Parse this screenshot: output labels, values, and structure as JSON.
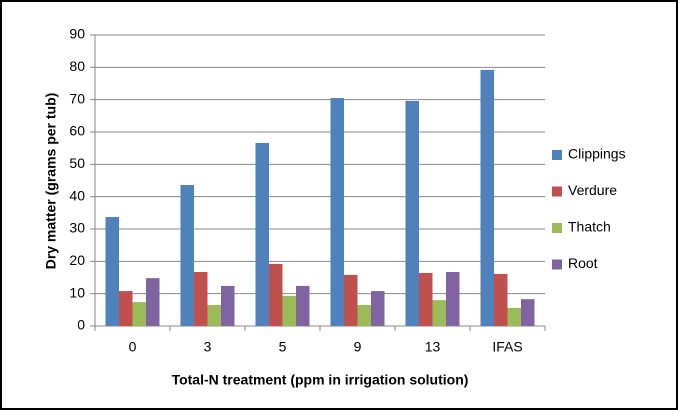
{
  "chart_data": {
    "type": "bar",
    "x_label": "Total-N treatment (ppm in irrigation solution)",
    "y_label": "Dry matter (grams per tub)",
    "categories": [
      "0",
      "3",
      "5",
      "9",
      "13",
      "IFAS"
    ],
    "series": [
      {
        "name": "Clippings",
        "color": "#4f81bd",
        "values": [
          33.7,
          43.6,
          56.6,
          70.5,
          69.6,
          79.2
        ]
      },
      {
        "name": "Verdure",
        "color": "#c0504d",
        "values": [
          10.8,
          16.7,
          19.2,
          15.8,
          16.4,
          16.1
        ]
      },
      {
        "name": "Thatch",
        "color": "#9bbb59",
        "values": [
          7.4,
          6.5,
          9.3,
          6.5,
          8.0,
          5.6
        ]
      },
      {
        "name": "Root",
        "color": "#8064a2",
        "values": [
          14.8,
          12.4,
          12.4,
          10.8,
          16.7,
          8.3
        ]
      }
    ],
    "ylim": [
      0,
      90
    ],
    "yticks": [
      0,
      10,
      20,
      30,
      40,
      50,
      60,
      70,
      80,
      90
    ],
    "grid": true,
    "legend": "right"
  }
}
